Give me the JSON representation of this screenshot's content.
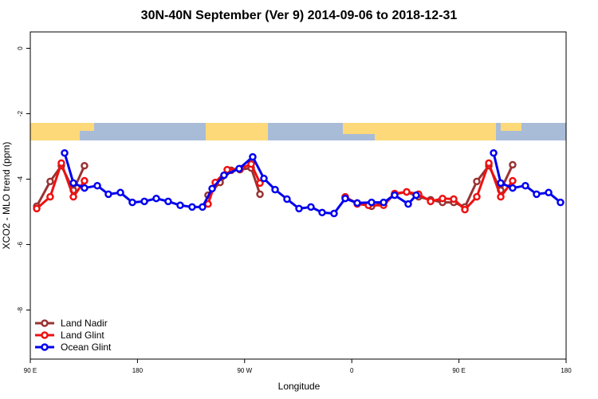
{
  "chart_data": {
    "type": "line",
    "title": "30N-40N September (Ver 9)   2014-09-06 to 2018-12-31",
    "x_label": "Longitude",
    "y_label": "XCO2 - MLO trend (ppm)",
    "xlim": [
      90,
      540
    ],
    "ylim": [
      -9.5,
      0.5
    ],
    "xticks": [
      {
        "value": 90,
        "label": "90 E"
      },
      {
        "value": 180,
        "label": "180"
      },
      {
        "value": 270,
        "label": "90 W"
      },
      {
        "value": 360,
        "label": "0"
      },
      {
        "value": 450,
        "label": "90 E"
      },
      {
        "value": 540,
        "label": "180"
      }
    ],
    "yticks": [
      0,
      -2,
      -4,
      -6,
      -8
    ],
    "grid": false,
    "legend": "bottom-left",
    "series": [
      {
        "name": "Land Nadir",
        "color": "#993333",
        "x": [
          95.4,
          106.7,
          116.1,
          126.2,
          135.5,
          null,
          239.3,
          249.4,
          258.8,
          266.1,
          275.5,
          282.9,
          null,
          354.5,
          364.6,
          376.6,
          386.7,
          396.0,
          406.1,
          416.1,
          426.2,
          436.2,
          445.6,
          455.0,
          465.0,
          475.1,
          485.1,
          495.1
        ],
        "values": [
          -4.83,
          -4.07,
          -3.59,
          -4.34,
          -3.59,
          null,
          -4.49,
          -4.1,
          -3.73,
          -3.71,
          -3.66,
          -4.46,
          null,
          -4.56,
          -4.73,
          -4.83,
          -4.73,
          -4.46,
          -4.39,
          -4.54,
          -4.63,
          -4.71,
          -4.71,
          -4.85,
          -4.07,
          -3.59,
          -4.34,
          -3.56
        ]
      },
      {
        "name": "Land Glint",
        "color": "#ee1111",
        "x": [
          95.4,
          106.7,
          116.1,
          126.2,
          135.5,
          null,
          239.3,
          245.4,
          255.4,
          266.1,
          275.5,
          282.9,
          null,
          354.5,
          364.6,
          374.0,
          386.7,
          396.0,
          406.1,
          416.1,
          426.2,
          436.2,
          445.6,
          455.0,
          465.0,
          475.1,
          485.1,
          495.1
        ],
        "values": [
          -4.9,
          -4.54,
          -3.51,
          -4.54,
          -4.05,
          null,
          -4.76,
          -4.1,
          -3.71,
          -3.68,
          -3.54,
          -4.12,
          null,
          -4.54,
          -4.76,
          -4.8,
          -4.8,
          -4.44,
          -4.39,
          -4.46,
          -4.68,
          -4.59,
          -4.61,
          -4.93,
          -4.54,
          -3.51,
          -4.54,
          -4.05
        ]
      },
      {
        "name": "Ocean Glint",
        "color": "#0000ee",
        "x": [
          118.8,
          126.2,
          135.5,
          146.3,
          155.6,
          165.7,
          175.7,
          185.8,
          195.8,
          205.8,
          215.9,
          225.9,
          234.6,
          242.7,
          252.7,
          265.4,
          276.8,
          286.2,
          295.6,
          305.6,
          315.7,
          325.7,
          335.1,
          345.1,
          354.5,
          364.6,
          376.6,
          386.7,
          396.0,
          407.4,
          414.1,
          null,
          479.1,
          485.1,
          495.1,
          505.8,
          515.2,
          525.3,
          535.3
        ],
        "values": [
          -3.2,
          -4.12,
          -4.27,
          -4.2,
          -4.46,
          -4.41,
          -4.71,
          -4.68,
          -4.59,
          -4.68,
          -4.8,
          -4.85,
          -4.85,
          -4.29,
          -3.88,
          -3.68,
          -3.32,
          -3.98,
          -4.32,
          -4.61,
          -4.9,
          -4.85,
          -5.02,
          -5.05,
          -4.59,
          -4.73,
          -4.71,
          -4.71,
          -4.49,
          -4.76,
          -4.49,
          null,
          -3.2,
          -4.12,
          -4.27,
          -4.2,
          -4.46,
          -4.41,
          -4.71
        ]
      }
    ]
  }
}
